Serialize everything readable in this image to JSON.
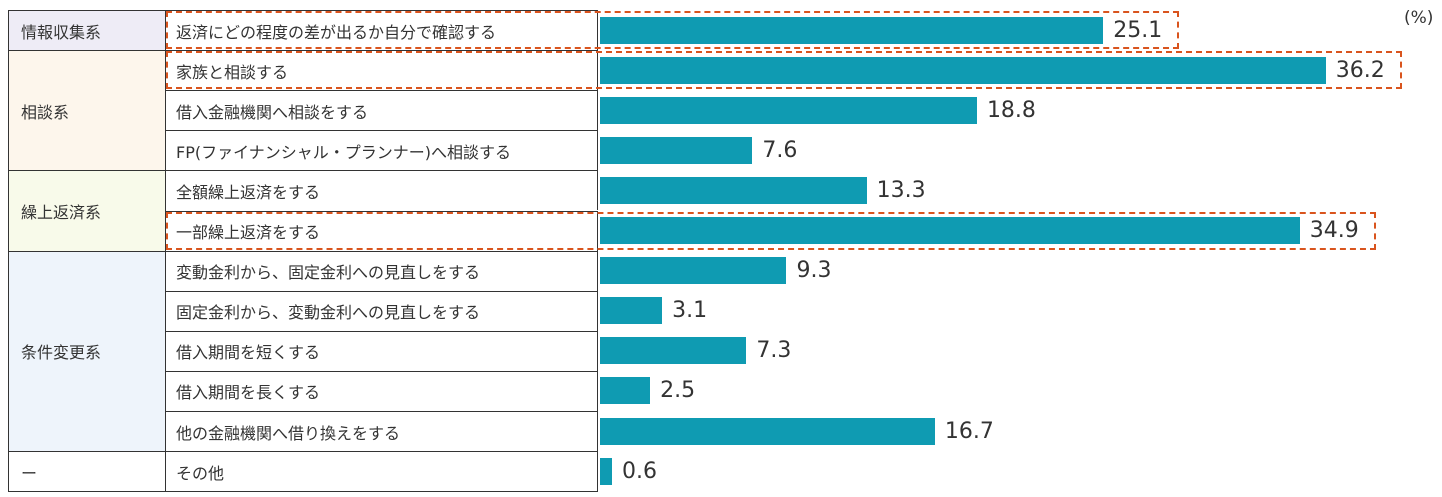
{
  "unit_label": "(%)",
  "colors": {
    "bar": "#0F9BB2",
    "highlight": "#D9541E",
    "group_info": "#EEECF6",
    "group_consult": "#FDF6EC",
    "group_prepay": "#F8FAEA",
    "group_change": "#EEF4FB",
    "group_other": "#FFFFFF"
  },
  "groups": [
    {
      "label": "情報収集系",
      "rows": 1
    },
    {
      "label": "相談系",
      "rows": 3
    },
    {
      "label": "繰上返済系",
      "rows": 2
    },
    {
      "label": "条件変更系",
      "rows": 5
    },
    {
      "label": "ー",
      "rows": 1
    }
  ],
  "items": [
    {
      "label": "返済にどの程度の差が出るか自分で確認する",
      "value": "25.1"
    },
    {
      "label": "家族と相談する",
      "value": "36.2"
    },
    {
      "label": "借入金融機関へ相談をする",
      "value": "18.8"
    },
    {
      "label": "FP(ファイナンシャル・プランナー)へ相談する",
      "value": "7.6"
    },
    {
      "label": "全額繰上返済をする",
      "value": "13.3"
    },
    {
      "label": "一部繰上返済をする",
      "value": "34.9"
    },
    {
      "label": "変動金利から、固定金利への見直しをする",
      "value": "9.3"
    },
    {
      "label": "固定金利から、変動金利への見直しをする",
      "value": "3.1"
    },
    {
      "label": "借入期間を短くする",
      "value": "7.3"
    },
    {
      "label": "借入期間を長くする",
      "value": "2.5"
    },
    {
      "label": "他の金融機関へ借り換えをする",
      "value": "16.7"
    },
    {
      "label": "その他",
      "value": "0.6"
    }
  ],
  "highlighted_items": [
    "返済にどの程度の差が出るか自分で確認する",
    "家族と相談する",
    "一部繰上返済をする"
  ],
  "chart_data": {
    "type": "bar",
    "orientation": "horizontal",
    "title": "",
    "unit": "%",
    "xlabel": "",
    "ylabel": "",
    "xlim": [
      0,
      40
    ],
    "grid": false,
    "legend": null,
    "category_groups": [
      {
        "group": "情報収集系",
        "categories": [
          "返済にどの程度の差が出るか自分で確認する"
        ]
      },
      {
        "group": "相談系",
        "categories": [
          "家族と相談する",
          "借入金融機関へ相談をする",
          "FP(ファイナンシャル・プランナー)へ相談する"
        ]
      },
      {
        "group": "繰上返済系",
        "categories": [
          "全額繰上返済をする",
          "一部繰上返済をする"
        ]
      },
      {
        "group": "条件変更系",
        "categories": [
          "変動金利から、固定金利への見直しをする",
          "固定金利から、変動金利への見直しをする",
          "借入期間を短くする",
          "借入期間を長くする",
          "他の金融機関へ借り換えをする"
        ]
      },
      {
        "group": "ー",
        "categories": [
          "その他"
        ]
      }
    ],
    "categories": [
      "返済にどの程度の差が出るか自分で確認する",
      "家族と相談する",
      "借入金融機関へ相談をする",
      "FP(ファイナンシャル・プランナー)へ相談する",
      "全額繰上返済をする",
      "一部繰上返済をする",
      "変動金利から、固定金利への見直しをする",
      "固定金利から、変動金利への見直しをする",
      "借入期間を短くする",
      "借入期間を長くする",
      "他の金融機関へ借り換えをする",
      "その他"
    ],
    "values": [
      25.1,
      36.2,
      18.8,
      7.6,
      13.3,
      34.9,
      9.3,
      3.1,
      7.3,
      2.5,
      16.7,
      0.6
    ],
    "annotations": [
      "Dashed orange boxes highlight: 返済にどの程度の差が出るか自分で確認する (25.1), 家族と相談する (36.2), 一部繰上返済をする (34.9)"
    ]
  }
}
